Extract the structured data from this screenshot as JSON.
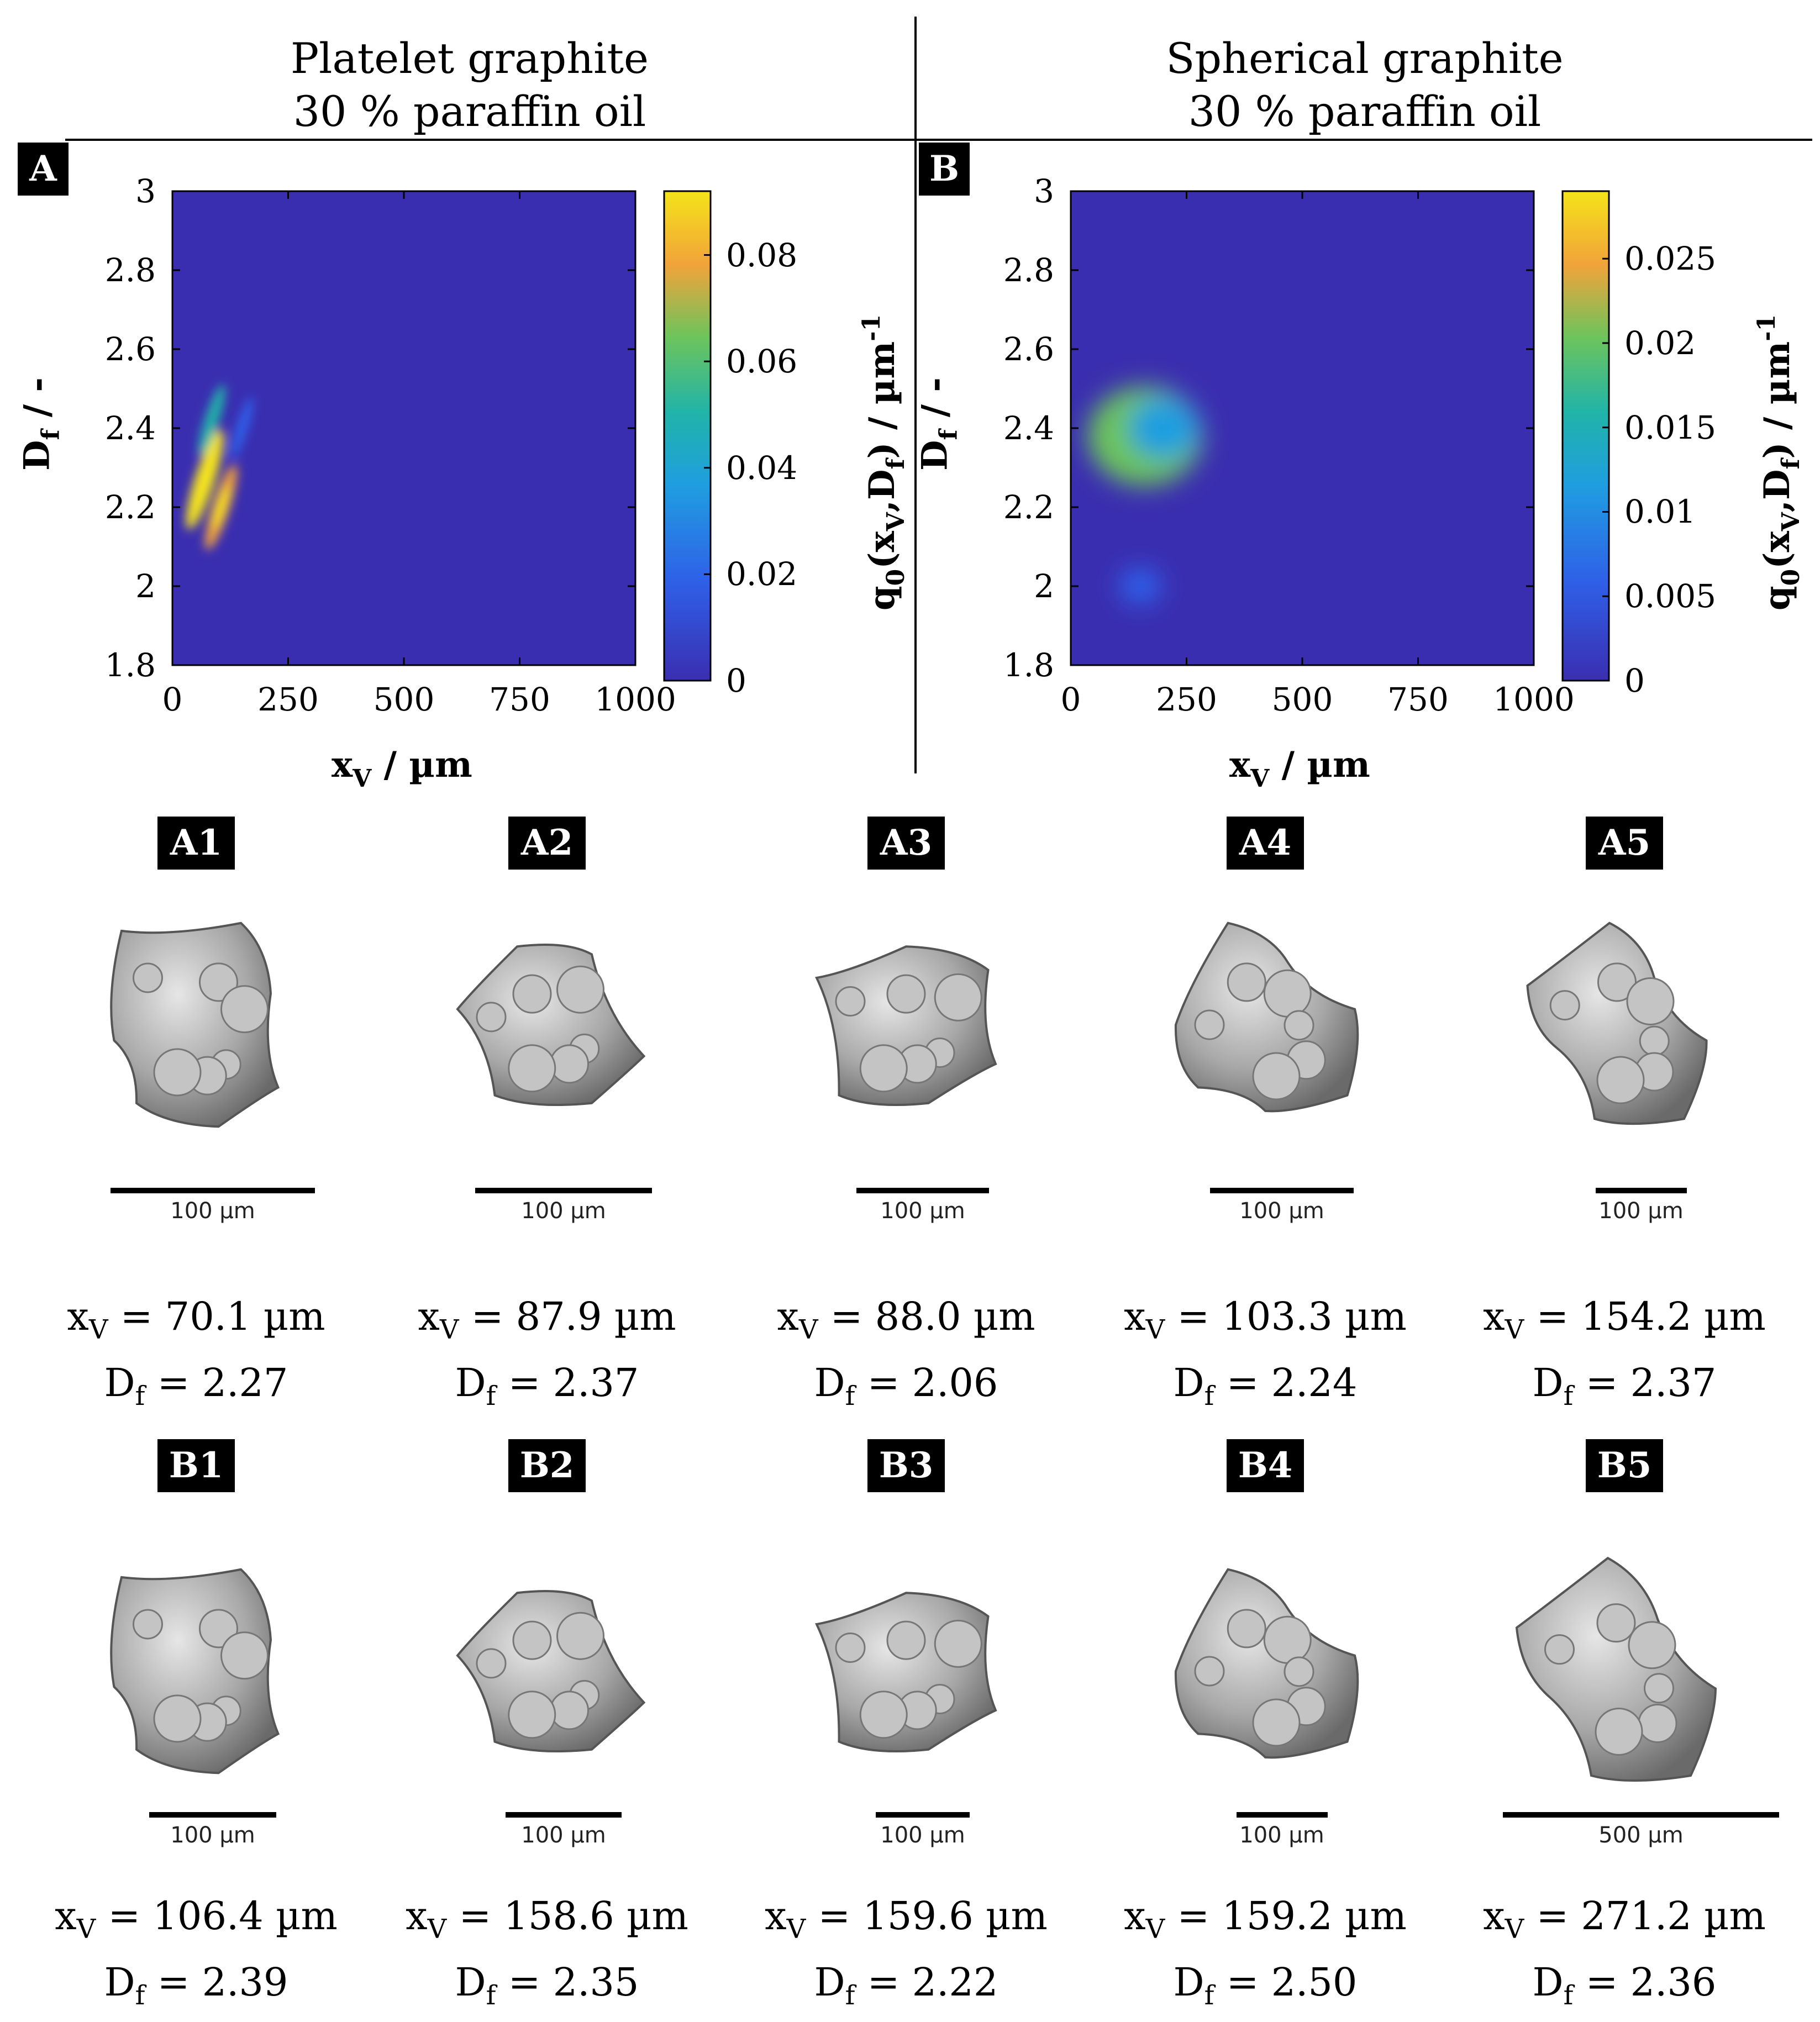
{
  "columns": [
    {
      "title_line1": "Platelet graphite",
      "title_line2": "30 % paraffin oil"
    },
    {
      "title_line1": "Spherical graphite",
      "title_line2": "30 % paraffin oil"
    }
  ],
  "chart_data": [
    {
      "type": "heatmap",
      "panel": "A",
      "xlabel": "x",
      "xlabel_sub": "V",
      "xlabel_rest": " / µm",
      "ylabel": "D",
      "ylabel_sub": "f",
      "ylabel_rest": " / -",
      "xlim": [
        0,
        1000
      ],
      "ylim": [
        1.8,
        3.0
      ],
      "x_ticks": [
        "0",
        "250",
        "500",
        "750",
        "1000"
      ],
      "y_ticks": [
        "1.8",
        "2",
        "2.2",
        "2.4",
        "2.6",
        "2.8",
        "3"
      ],
      "colorbar": {
        "range": [
          0,
          0.092
        ],
        "ticks": [
          "0",
          "0.02",
          "0.04",
          "0.06",
          "0.08"
        ],
        "label": "q0(xV,Df) / µm-1"
      },
      "peaks": [
        {
          "x": 70,
          "y": 2.27,
          "value": 0.092
        },
        {
          "x": 105,
          "y": 2.2,
          "value": 0.06
        },
        {
          "x": 85,
          "y": 2.42,
          "value": 0.03
        },
        {
          "x": 150,
          "y": 2.4,
          "value": 0.01
        }
      ]
    },
    {
      "type": "heatmap",
      "panel": "B",
      "xlabel": "x",
      "xlabel_sub": "V",
      "xlabel_rest": " / µm",
      "ylabel": "D",
      "ylabel_sub": "f",
      "ylabel_rest": " / -",
      "xlim": [
        0,
        1000
      ],
      "ylim": [
        1.8,
        3.0
      ],
      "x_ticks": [
        "0",
        "250",
        "500",
        "750",
        "1000"
      ],
      "y_ticks": [
        "1.8",
        "2",
        "2.2",
        "2.4",
        "2.6",
        "2.8",
        "3"
      ],
      "colorbar": {
        "range": [
          0,
          0.029
        ],
        "ticks": [
          "0",
          "0.005",
          "0.01",
          "0.015",
          "0.02",
          "0.025"
        ],
        "label": "q0(xV,Df) / µm-1"
      },
      "peaks": [
        {
          "x": 160,
          "y": 2.38,
          "value": 0.029
        },
        {
          "x": 200,
          "y": 2.4,
          "value": 0.012
        },
        {
          "x": 150,
          "y": 2.0,
          "value": 0.002
        }
      ]
    }
  ],
  "colorbar_label": {
    "q": "q",
    "q_sub": "0",
    "open": "(x",
    "x_sub": "V",
    "mid": ",D",
    "d_sub": "f",
    "close": ") / µm",
    "exp": "-1"
  },
  "particles": [
    {
      "tag": "A1",
      "scale": "100 µm",
      "xv_label": "x",
      "xv_sub": "V",
      "xv_value": " = 70.1 µm",
      "df_label": "D",
      "df_sub": "f",
      "df_value": " = 2.27"
    },
    {
      "tag": "A2",
      "scale": "100 µm",
      "xv_label": "x",
      "xv_sub": "V",
      "xv_value": " = 87.9 µm",
      "df_label": "D",
      "df_sub": "f",
      "df_value": " = 2.37"
    },
    {
      "tag": "A3",
      "scale": "100 µm",
      "xv_label": "x",
      "xv_sub": "V",
      "xv_value": " = 88.0 µm",
      "df_label": "D",
      "df_sub": "f",
      "df_value": " = 2.06"
    },
    {
      "tag": "A4",
      "scale": "100 µm",
      "xv_label": "x",
      "xv_sub": "V",
      "xv_value": " = 103.3 µm",
      "df_label": "D",
      "df_sub": "f",
      "df_value": " = 2.24"
    },
    {
      "tag": "A5",
      "scale": "100 µm",
      "xv_label": "x",
      "xv_sub": "V",
      "xv_value": " = 154.2 µm",
      "df_label": "D",
      "df_sub": "f",
      "df_value": " = 2.37"
    },
    {
      "tag": "B1",
      "scale": "100 µm",
      "xv_label": "x",
      "xv_sub": "V",
      "xv_value": " = 106.4 µm",
      "df_label": "D",
      "df_sub": "f",
      "df_value": " = 2.39"
    },
    {
      "tag": "B2",
      "scale": "100 µm",
      "xv_label": "x",
      "xv_sub": "V",
      "xv_value": " = 158.6 µm",
      "df_label": "D",
      "df_sub": "f",
      "df_value": " = 2.35"
    },
    {
      "tag": "B3",
      "scale": "100 µm",
      "xv_label": "x",
      "xv_sub": "V",
      "xv_value": " = 159.6 µm",
      "df_label": "D",
      "df_sub": "f",
      "df_value": " = 2.22"
    },
    {
      "tag": "B4",
      "scale": "100 µm",
      "xv_label": "x",
      "xv_sub": "V",
      "xv_value": " = 159.2 µm",
      "df_label": "D",
      "df_sub": "f",
      "df_value": " = 2.50"
    },
    {
      "tag": "B5",
      "scale": "500 µm",
      "xv_label": "x",
      "xv_sub": "V",
      "xv_value": " = 271.2 µm",
      "df_label": "D",
      "df_sub": "f",
      "df_value": " = 2.36"
    }
  ],
  "colors": {
    "low": "#3a2eb0",
    "mid": "#21b4a8",
    "high": "#f4e31a",
    "particle": "#b8b8b8"
  }
}
